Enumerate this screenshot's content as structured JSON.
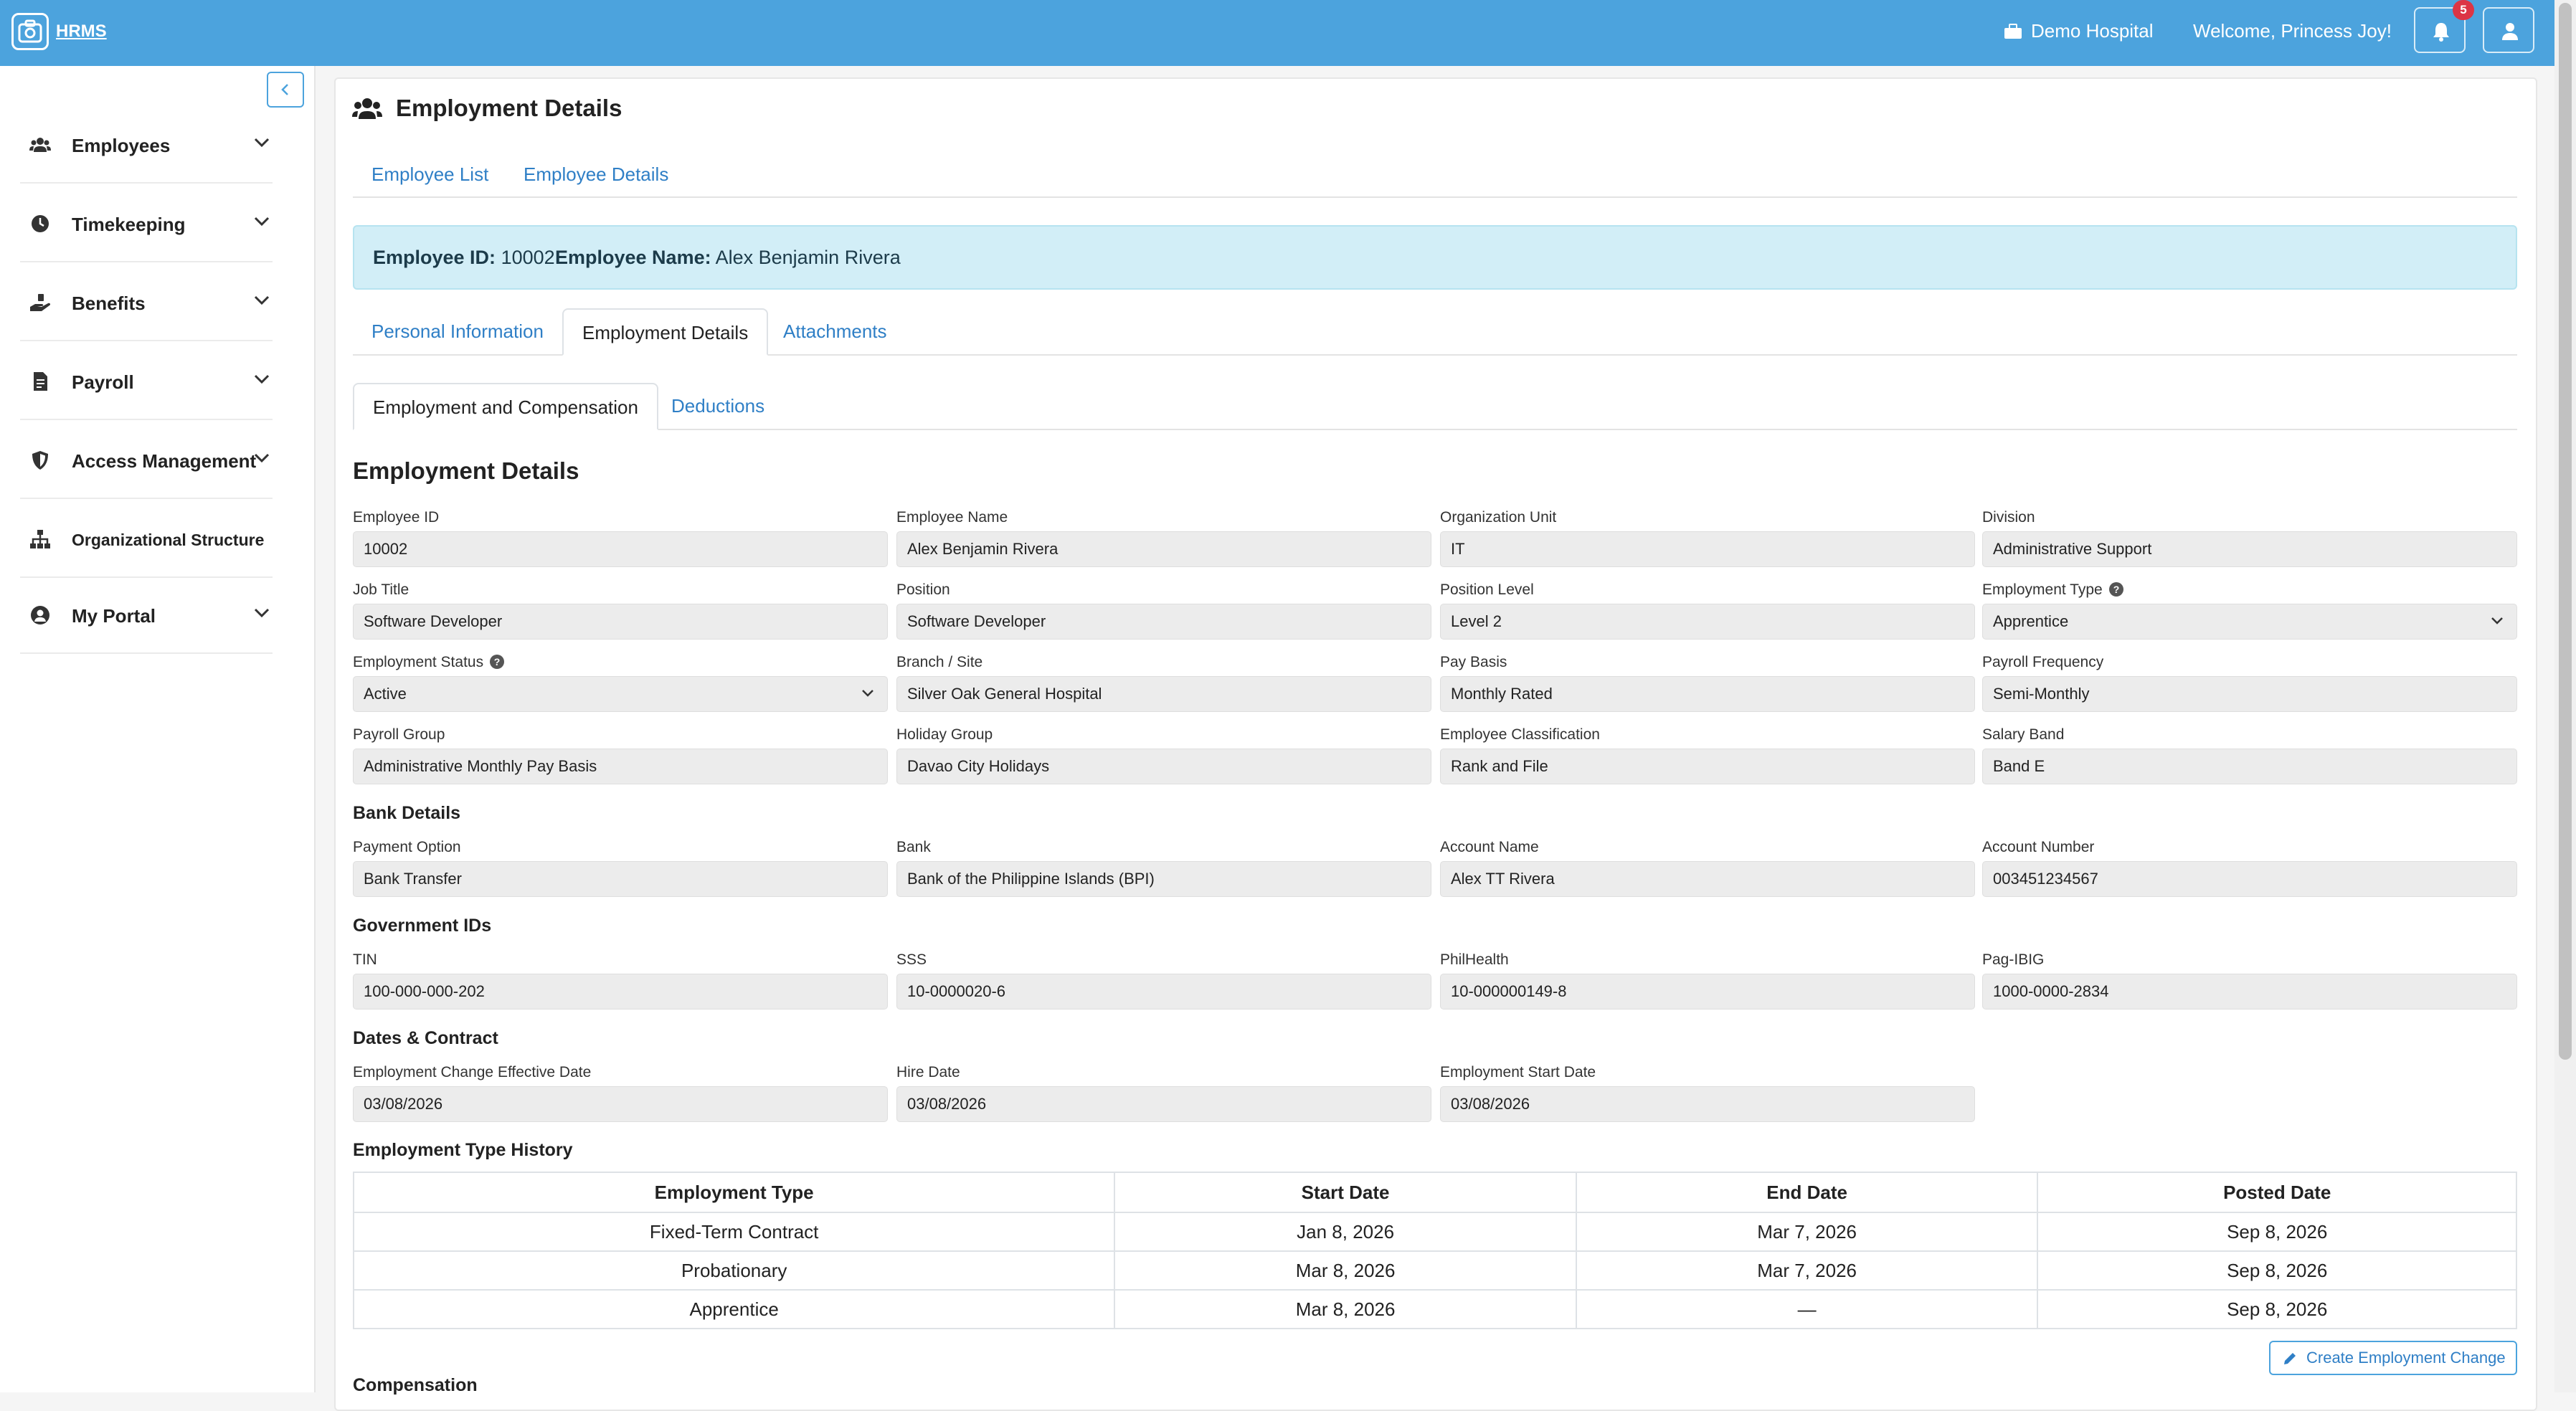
{
  "header": {
    "app_name": "HRMS",
    "organization": "Demo Hospital",
    "welcome": "Welcome, Princess Joy!",
    "notification_count": "5"
  },
  "sidebar": {
    "items": [
      {
        "label": "Employees",
        "icon": "users-icon"
      },
      {
        "label": "Timekeeping",
        "icon": "clock-icon"
      },
      {
        "label": "Benefits",
        "icon": "hand-holding-icon"
      },
      {
        "label": "Payroll",
        "icon": "file-invoice-icon"
      },
      {
        "label": "Access Management",
        "icon": "shield-icon"
      },
      {
        "label": "Organizational Structure",
        "icon": "sitemap-icon"
      },
      {
        "label": "My Portal",
        "icon": "user-circle-icon"
      }
    ]
  },
  "page": {
    "title": "Employment Details",
    "breadcrumbs": [
      "Employee List",
      "Employee Details"
    ]
  },
  "banner": {
    "id_label": "Employee ID:",
    "id_value": "10002",
    "name_label": "Employee Name:",
    "name_value": "Alex Benjamin Rivera"
  },
  "tabs": [
    "Personal Information",
    "Employment Details",
    "Attachments"
  ],
  "subtabs": [
    "Employment and Compensation",
    "Deductions"
  ],
  "employment": {
    "heading": "Employment Details",
    "fields": [
      {
        "label": "Employee ID",
        "value": "10002"
      },
      {
        "label": "Employee Name",
        "value": "Alex Benjamin Rivera"
      },
      {
        "label": "Organization Unit",
        "value": "IT"
      },
      {
        "label": "Division",
        "value": "Administrative Support"
      },
      {
        "label": "Job Title",
        "value": "Software Developer"
      },
      {
        "label": "Position",
        "value": "Software Developer"
      },
      {
        "label": "Position Level",
        "value": "Level 2"
      },
      {
        "label": "Employment Type",
        "value": "Apprentice"
      },
      {
        "label": "Employment Status",
        "value": "Active"
      },
      {
        "label": "Branch / Site",
        "value": "Silver Oak General Hospital"
      },
      {
        "label": "Pay Basis",
        "value": "Monthly Rated"
      },
      {
        "label": "Payroll Frequency",
        "value": "Semi-Monthly"
      },
      {
        "label": "Payroll Group",
        "value": "Administrative Monthly Pay Basis"
      },
      {
        "label": "Holiday Group",
        "value": "Davao City Holidays"
      },
      {
        "label": "Employee Classification",
        "value": "Rank and File"
      },
      {
        "label": "Salary Band",
        "value": "Band E"
      }
    ]
  },
  "bank": {
    "heading": "Bank Details",
    "fields": [
      {
        "label": "Payment Option",
        "value": "Bank Transfer"
      },
      {
        "label": "Bank",
        "value": "Bank of the Philippine Islands (BPI)"
      },
      {
        "label": "Account Name",
        "value": "Alex TT Rivera"
      },
      {
        "label": "Account Number",
        "value": "003451234567"
      }
    ]
  },
  "gov": {
    "heading": "Government IDs",
    "fields": [
      {
        "label": "TIN",
        "value": "100-000-000-202"
      },
      {
        "label": "SSS",
        "value": "10-0000020-6"
      },
      {
        "label": "PhilHealth",
        "value": "10-000000149-8"
      },
      {
        "label": "Pag-IBIG",
        "value": "1000-0000-2834"
      }
    ]
  },
  "dates": {
    "heading": "Dates & Contract",
    "fields": [
      {
        "label": "Employment Change Effective Date",
        "value": "03/08/2026"
      },
      {
        "label": "Hire Date",
        "value": "03/08/2026"
      },
      {
        "label": "Employment Start Date",
        "value": "03/08/2026"
      }
    ]
  },
  "history": {
    "heading": "Employment Type History",
    "columns": [
      "Employment Type",
      "Start Date",
      "End Date",
      "Posted Date"
    ],
    "rows": [
      [
        "Fixed-Term Contract",
        "Jan 8, 2026",
        "Mar 7, 2026",
        "Sep 8, 2026"
      ],
      [
        "Probationary",
        "Mar 8, 2026",
        "Mar 7, 2026",
        "Sep 8, 2026"
      ],
      [
        "Apprentice",
        "Mar 8, 2026",
        "—",
        "Sep 8, 2026"
      ]
    ]
  },
  "actions": {
    "create_change": "Create Employment Change"
  },
  "compensation": {
    "heading": "Compensation"
  }
}
